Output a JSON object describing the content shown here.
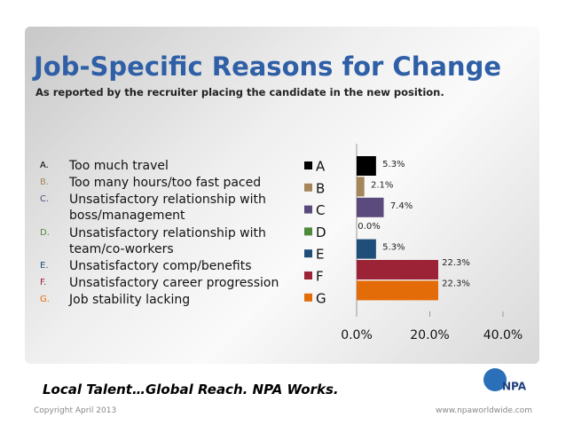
{
  "header": {
    "title": "Job-Specific Reasons for Change",
    "subtitle": "As reported by the recruiter placing the candidate in the new position."
  },
  "list": [
    {
      "letter": "A.",
      "text": "Too much travel"
    },
    {
      "letter": "B.",
      "text": "Too many hours/too fast paced"
    },
    {
      "letter": "C.",
      "text": "Unsatisfactory relationship with boss/management"
    },
    {
      "letter": "D.",
      "text": "Unsatisfactory relationship with team/co-workers"
    },
    {
      "letter": "E.",
      "text": "Unsatisfactory comp/benefits"
    },
    {
      "letter": "F.",
      "text": "Unsatisfactory career progression"
    },
    {
      "letter": "G.",
      "text": "Job stability lacking"
    }
  ],
  "chart_data": {
    "type": "barh",
    "categories": [
      "A",
      "B",
      "C",
      "D",
      "E",
      "F",
      "G"
    ],
    "values": [
      5.3,
      2.1,
      7.4,
      0.0,
      5.3,
      22.3,
      22.3
    ],
    "value_labels": [
      "5.3%",
      "2.1%",
      "7.4%",
      "0.0%",
      "5.3%",
      "22.3%",
      "22.3%"
    ],
    "colors": [
      "#000000",
      "#a5865a",
      "#5b4a7c",
      "#4f8a3c",
      "#1f4e79",
      "#9b2335",
      "#e36c09"
    ],
    "xlim": [
      0,
      40
    ],
    "xticks": [
      {
        "value": 0,
        "label": "0.0%"
      },
      {
        "value": 20,
        "label": "20.0%"
      },
      {
        "value": 40,
        "label": "40.0%"
      }
    ]
  },
  "footer": {
    "tagline": "Local Talent…Global Reach. NPA Works.",
    "copyright": "Copyright April 2013",
    "url": "www.npaworldwide.com",
    "logo": "NPA"
  }
}
